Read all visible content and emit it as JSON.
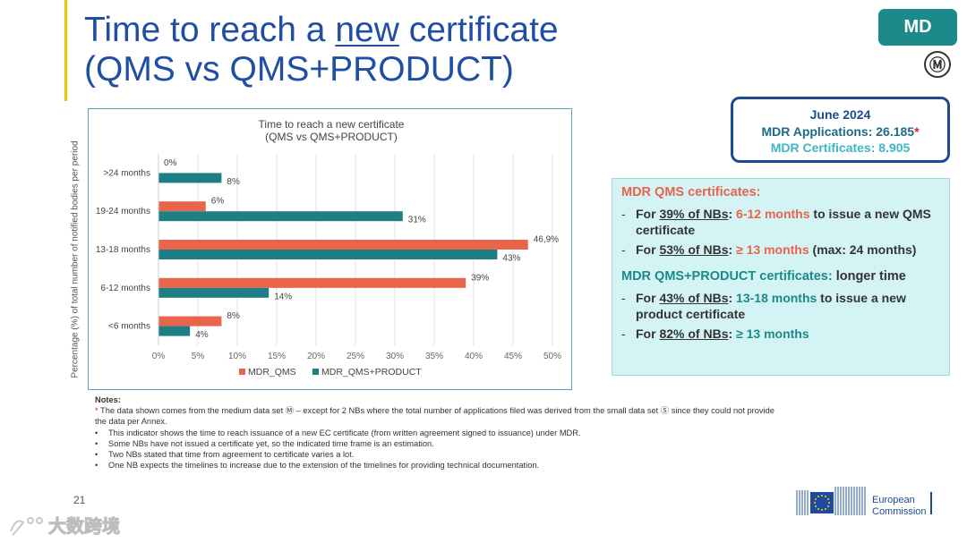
{
  "header": {
    "title_part1": "Time to reach a ",
    "title_underlined": "new",
    "title_part2": " certificate",
    "title_line2": "(QMS vs QMS+PRODUCT)"
  },
  "badge": {
    "label": "MD",
    "symbol": "Ⓜ"
  },
  "stats": {
    "date": "June 2024",
    "applications_label": "MDR Applications: 26.185",
    "applications_star": "*",
    "certificates_label": "MDR Certificates: 8.905"
  },
  "info": {
    "qms_heading": "MDR QMS certificates:",
    "qms_items": [
      {
        "a": "For ",
        "b": "39% of NBs",
        "c": ": ",
        "d": "6-12 months",
        "e": " to issue a new QMS certificate"
      },
      {
        "a": "For ",
        "b": "53% of NBs",
        "c": ": ",
        "d": "≥ 13 months",
        "e": " (max: 24 months)"
      }
    ],
    "product_heading_colored": "MDR QMS+PRODUCT certificates:",
    "product_heading_rest": " longer time",
    "product_items": [
      {
        "a": "For ",
        "b": "43% of NBs",
        "c": ": ",
        "d": "13-18 months",
        "e": " to issue a new product certificate"
      },
      {
        "a": "For ",
        "b": "82% of NBs",
        "c": ": ",
        "d": "≥ 13 months",
        "e": ""
      }
    ]
  },
  "chart_data": {
    "type": "bar",
    "orientation": "horizontal",
    "title": "Time to reach a new certificate",
    "subtitle": "(QMS vs QMS+PRODUCT)",
    "ylabel": "Percentage (%) of total number of notified bodies per period",
    "categories": [
      ">24 months",
      "19-24 months",
      "13-18 months",
      "6-12 months",
      "<6 months"
    ],
    "series": [
      {
        "name": "MDR_QMS",
        "color": "#e8644a",
        "values": [
          0,
          6,
          46.9,
          39,
          8
        ],
        "labels": [
          "0%",
          "6%",
          "46,9%",
          "39%",
          "8%"
        ]
      },
      {
        "name": "MDR_QMS+PRODUCT",
        "color": "#1d7f85",
        "values": [
          8,
          31,
          43,
          14,
          4
        ],
        "labels": [
          "8%",
          "31%",
          "43%",
          "14%",
          "4%"
        ]
      }
    ],
    "xlim": [
      0,
      50
    ],
    "xticks": [
      "0%",
      "5%",
      "10%",
      "15%",
      "20%",
      "25%",
      "30%",
      "35%",
      "40%",
      "45%",
      "50%"
    ],
    "grid": true,
    "legend": "bottom"
  },
  "notes": {
    "heading": "Notes:",
    "star": "*",
    "star_text": " The data shown comes from the medium data set Ⓜ – except for 2 NBs where the total number of applications filed was derived from the small data set Ⓢ since they could not provide the data per Annex.",
    "bullets": [
      "This indicator shows the time to reach issuance of a new EC certificate (from written agreement signed to issuance) under MDR.",
      "Some NBs have not issued a certificate yet, so the indicated time frame is an estimation.",
      "Two NBs stated that time from agreement to certificate varies a lot.",
      "One NB expects the timelines to increase due to the extension of the timelines for providing technical documentation."
    ]
  },
  "footer": {
    "page_number": "21",
    "org_line1": "European",
    "org_line2": "Commission",
    "watermark": "大数跨境"
  }
}
